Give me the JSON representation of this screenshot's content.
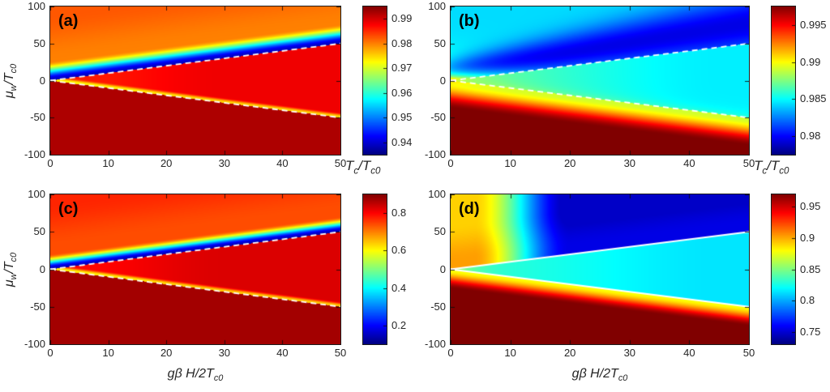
{
  "figure": {
    "background": "#ffffff",
    "description": "Four-panel jet-colormap heatmap figure showing critical temperature Tc/Tc0 versus Zeeman field gβH/2Tc0 (x) and chemical potential μw/Tc0 (y), with wedge phase boundaries y=+x and y=-x overlaid as white lines."
  },
  "shared": {
    "xlabel": "gβ H/2T_c0",
    "ylabel": "μ_w/T_c0",
    "cbar_label": "T_c/T_c0"
  },
  "chart_data": [
    {
      "id": "a",
      "type": "heatmap",
      "label": "(a)",
      "x": {
        "label": "gβ H/2T_c0",
        "range": [
          0,
          50
        ],
        "ticks": [
          0,
          10,
          20,
          30,
          40,
          50
        ]
      },
      "y": {
        "label": "μ_w/T_c0",
        "range": [
          -100,
          100
        ],
        "ticks": [
          -100,
          -50,
          0,
          50,
          100
        ]
      },
      "colorbar": {
        "label": "T_c/T_c0",
        "range": [
          0.935,
          0.995
        ],
        "ticks": [
          0.99,
          0.98,
          0.97,
          0.96,
          0.95,
          0.94
        ]
      },
      "lines": [
        {
          "from": [
            0,
            0
          ],
          "to": [
            50,
            50
          ],
          "style": "dashed",
          "color": "#ffffff"
        },
        {
          "from": [
            0,
            0
          ],
          "to": [
            50,
            -50
          ],
          "style": "dashed",
          "color": "#ffffff"
        }
      ],
      "regions": "Dark-red region (~0.99) below y=-x with thin yellow-green band at the boundary; orange-red wedge (~0.985) between y=-x and y=+x; narrow dark-blue trough (~0.94) just above y=+x grading through cyan/green/yellow to orange toward the top."
    },
    {
      "id": "b",
      "type": "heatmap",
      "label": "(b)",
      "x": {
        "label": "gβ H/2T_c0",
        "range": [
          0,
          50
        ],
        "ticks": [
          0,
          10,
          20,
          30,
          40,
          50
        ]
      },
      "y": {
        "label": "μ_w/T_c0",
        "range": [
          -100,
          100
        ],
        "ticks": [
          -100,
          -50,
          0,
          50,
          100
        ]
      },
      "colorbar": {
        "label": "T_c/T_c0",
        "range": [
          0.9775,
          0.9975
        ],
        "ticks": [
          0.995,
          0.99,
          0.985,
          0.98
        ]
      },
      "lines": [
        {
          "from": [
            0,
            0
          ],
          "to": [
            50,
            50
          ],
          "style": "dashed",
          "color": "#ffffff"
        },
        {
          "from": [
            0,
            0
          ],
          "to": [
            50,
            -50
          ],
          "style": "dashed",
          "color": "#ffffff"
        }
      ],
      "regions": "Smooth gradients: broad dark-blue lobe (~0.98) above y=+x widening to the right, cyan top edge, small yellow-orange spot near the origin; cyan-green wedge between the dashed lines; below y=-x the value rises from green-yellow through orange/red to dark red (~0.9975) at the bottom."
    },
    {
      "id": "c",
      "type": "heatmap",
      "label": "(c)",
      "x": {
        "label": "gβ H/2T_c0",
        "range": [
          0,
          50
        ],
        "ticks": [
          0,
          10,
          20,
          30,
          40,
          50
        ]
      },
      "y": {
        "label": "μ_w/T_c0",
        "range": [
          -100,
          100
        ],
        "ticks": [
          -100,
          -50,
          0,
          50,
          100
        ]
      },
      "colorbar": {
        "label": "T_c/T_c0",
        "range": [
          0.1,
          0.9
        ],
        "ticks": [
          0.8,
          0.6,
          0.4,
          0.2
        ]
      },
      "lines": [
        {
          "from": [
            0,
            0
          ],
          "to": [
            50,
            50
          ],
          "style": "dashed",
          "color": "#ffffff"
        },
        {
          "from": [
            0,
            0
          ],
          "to": [
            50,
            -50
          ],
          "style": "dashed",
          "color": "#ffffff"
        }
      ],
      "regions": "Same wedge topology as panel (a): dark-red region below y=-x, red wedge, narrow dark-blue trough along y=+x, orange-red upper region; order-parameter scale runs 0.2–0.8."
    },
    {
      "id": "d",
      "type": "heatmap",
      "label": "(d)",
      "x": {
        "label": "gβ H/2T_c0",
        "range": [
          0,
          50
        ],
        "ticks": [
          0,
          10,
          20,
          30,
          40,
          50
        ]
      },
      "y": {
        "label": "μ_w/T_c0",
        "range": [
          -100,
          100
        ],
        "ticks": [
          -100,
          -50,
          0,
          50,
          100
        ]
      },
      "colorbar": {
        "label": "T_c/T_c0",
        "range": [
          0.73,
          0.97
        ],
        "ticks": [
          0.95,
          0.9,
          0.85,
          0.8,
          0.75
        ]
      },
      "lines": [
        {
          "from": [
            0,
            0
          ],
          "to": [
            50,
            50
          ],
          "style": "solid",
          "color": "#ffffff"
        },
        {
          "from": [
            0,
            0
          ],
          "to": [
            50,
            -50
          ],
          "style": "solid",
          "color": "#ffffff"
        }
      ],
      "regions": "Solid white boundary lines y=±x: yellow-orange upper-left corner turning into a large dark-blue region (~0.75) above y=+x for x≳15; cyan wedge between the lines; below y=-x a thin yellow-orange band grading to red and dark red (~0.97) over the lower half."
    }
  ]
}
